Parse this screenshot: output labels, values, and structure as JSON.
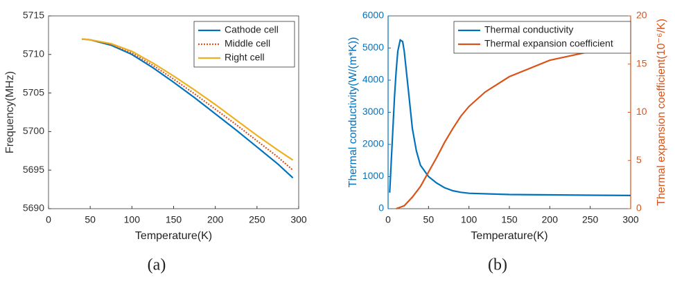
{
  "chart_data": [
    {
      "type": "line",
      "caption": "(a)",
      "xlabel": "Temperature(K)",
      "ylabel": "Frequency(MHz)",
      "xlim": [
        0,
        300
      ],
      "xticks": [
        0,
        50,
        100,
        150,
        200,
        250,
        300
      ],
      "ylim": [
        5690,
        5715
      ],
      "yticks": [
        5690,
        5695,
        5700,
        5705,
        5710,
        5715
      ],
      "legend": "upper right",
      "x": [
        40,
        50,
        75,
        100,
        125,
        150,
        175,
        200,
        225,
        250,
        275,
        293
      ],
      "series": [
        {
          "name": "Cathode cell",
          "color": "#0072BD",
          "linestyle": "solid",
          "values": [
            5712,
            5711.9,
            5711.2,
            5710.0,
            5708.3,
            5706.4,
            5704.4,
            5702.3,
            5700.2,
            5698.0,
            5695.8,
            5694.0
          ]
        },
        {
          "name": "Middle cell",
          "color": "#D95319",
          "linestyle": "dotted",
          "values": [
            5712,
            5711.9,
            5711.3,
            5710.2,
            5708.6,
            5706.8,
            5704.9,
            5702.9,
            5700.9,
            5698.8,
            5696.7,
            5695.0
          ]
        },
        {
          "name": "Right cell",
          "color": "#EDB120",
          "linestyle": "solid",
          "values": [
            5712,
            5711.9,
            5711.4,
            5710.4,
            5708.9,
            5707.2,
            5705.4,
            5703.5,
            5701.5,
            5699.5,
            5697.6,
            5696.3
          ]
        }
      ]
    },
    {
      "type": "line",
      "caption": "(b)",
      "xlabel": "Temperature(K)",
      "ylabel": "Thermal conductivity(W/(m*K))",
      "y2label": "Thermal expansion coefficient(10⁻⁶/K)",
      "xlim": [
        0,
        300
      ],
      "xticks": [
        0,
        50,
        100,
        150,
        200,
        250,
        300
      ],
      "ylim": [
        0,
        6000
      ],
      "yticks": [
        0,
        1000,
        2000,
        3000,
        4000,
        5000,
        6000
      ],
      "y2lim": [
        0,
        20
      ],
      "y2ticks": [
        0,
        5,
        10,
        15,
        20
      ],
      "legend": "upper left",
      "series": [
        {
          "name": "Thermal conductivity",
          "color": "#0072BD",
          "linestyle": "solid",
          "x": [
            2,
            5,
            8,
            10,
            12,
            15,
            18,
            20,
            25,
            30,
            35,
            40,
            50,
            60,
            70,
            80,
            90,
            100,
            125,
            150,
            200,
            250,
            300
          ],
          "values": [
            500,
            2000,
            3500,
            4300,
            4900,
            5250,
            5200,
            4900,
            3700,
            2500,
            1800,
            1350,
            1000,
            800,
            650,
            560,
            510,
            480,
            460,
            440,
            430,
            420,
            410
          ]
        },
        {
          "name": "Thermal expansion coefficient",
          "color": "#D95319",
          "linestyle": "solid",
          "axis": "y2",
          "x": [
            10,
            20,
            30,
            40,
            50,
            60,
            70,
            80,
            90,
            100,
            120,
            150,
            200,
            250,
            300
          ],
          "values": [
            0,
            0.3,
            1.2,
            2.3,
            3.8,
            5.3,
            6.9,
            8.3,
            9.6,
            10.6,
            12.1,
            13.7,
            15.4,
            16.3,
            16.6
          ]
        }
      ]
    }
  ]
}
